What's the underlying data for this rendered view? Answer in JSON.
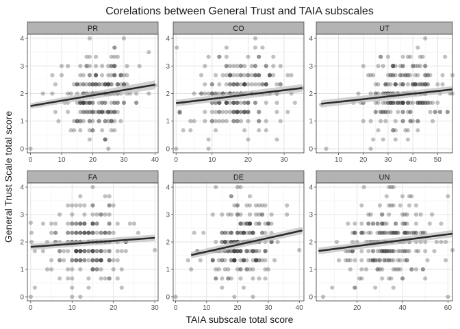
{
  "chart_data": {
    "type": "scatter",
    "title": "Corelations between General Trust and TAIA subscales",
    "xlabel": "TAIA subscale total score",
    "ylabel": "General Trust Scale total score",
    "ylim": [
      -0.15,
      4.15
    ],
    "yticks": [
      0,
      1,
      2,
      3,
      4
    ],
    "grid": true,
    "point_color": "#333333",
    "line_color": "#2b2b2b",
    "band_color": "#bdbdbd",
    "strip_fill": "#b3b3b3",
    "panels": [
      {
        "label": "PR",
        "xlim": [
          -1,
          41
        ],
        "xticks": [
          0,
          10,
          20,
          30,
          40
        ],
        "fit": {
          "x": [
            0,
            40
          ],
          "y": [
            1.55,
            2.32
          ],
          "se": [
            0.1,
            0.16
          ]
        },
        "cx": 22,
        "sx": 6,
        "mx": 40,
        "slope": 0.019,
        "extra": [
          [
            0,
            0
          ],
          [
            30,
            4
          ],
          [
            38,
            3.5
          ],
          [
            40,
            2.3
          ],
          [
            4,
            2.0
          ]
        ]
      },
      {
        "label": "CO",
        "xlim": [
          -0.8,
          35.5
        ],
        "xticks": [
          0,
          10,
          20,
          30
        ],
        "fit": {
          "x": [
            0,
            35
          ],
          "y": [
            1.65,
            2.2
          ],
          "se": [
            0.12,
            0.14
          ]
        },
        "cx": 17,
        "sx": 6,
        "mx": 35,
        "slope": 0.016,
        "extra": [
          [
            0,
            0
          ],
          [
            22,
            4
          ],
          [
            35,
            2.2
          ],
          [
            1,
            1.3
          ]
        ]
      },
      {
        "label": "UT",
        "xlim": [
          1,
          56
        ],
        "xticks": [
          10,
          20,
          30,
          40,
          50
        ],
        "fit": {
          "x": [
            3,
            56
          ],
          "y": [
            1.63,
            2.15
          ],
          "se": [
            0.13,
            0.12
          ]
        },
        "cx": 36,
        "sx": 8,
        "mx": 56,
        "slope": 0.01,
        "extra": [
          [
            5,
            0
          ],
          [
            45,
            4
          ],
          [
            3,
            1.6
          ],
          [
            56,
            2.0
          ]
        ]
      },
      {
        "label": "FA",
        "xlim": [
          -0.8,
          30.8
        ],
        "xticks": [
          0,
          10,
          20,
          30
        ],
        "fit": {
          "x": [
            0,
            30
          ],
          "y": [
            1.82,
            2.15
          ],
          "se": [
            0.11,
            0.12
          ]
        },
        "cx": 14,
        "sx": 5,
        "mx": 30,
        "slope": 0.011,
        "extra": [
          [
            0,
            0
          ],
          [
            15,
            4
          ],
          [
            30,
            1.7
          ],
          [
            0,
            2.7
          ]
        ]
      },
      {
        "label": "DE",
        "xlim": [
          -0.8,
          41.5
        ],
        "xticks": [
          0,
          10,
          20,
          30,
          40
        ],
        "fit": {
          "x": [
            5,
            41
          ],
          "y": [
            1.52,
            2.42
          ],
          "se": [
            0.12,
            0.13
          ]
        },
        "cx": 22,
        "sx": 6,
        "mx": 41,
        "slope": 0.025,
        "extra": [
          [
            0,
            0
          ],
          [
            20,
            4
          ],
          [
            40,
            1.7
          ],
          [
            5,
            1.0
          ]
        ]
      },
      {
        "label": "UN",
        "xlim": [
          2,
          62
        ],
        "xticks": [
          20,
          40,
          60
        ],
        "fit": {
          "x": [
            3,
            62
          ],
          "y": [
            1.67,
            2.3
          ],
          "se": [
            0.12,
            0.13
          ]
        },
        "cx": 33,
        "sx": 9,
        "mx": 62,
        "slope": 0.011,
        "extra": [
          [
            5,
            0
          ],
          [
            35,
            4
          ],
          [
            60,
            0
          ],
          [
            62,
            1.7
          ]
        ]
      }
    ]
  }
}
